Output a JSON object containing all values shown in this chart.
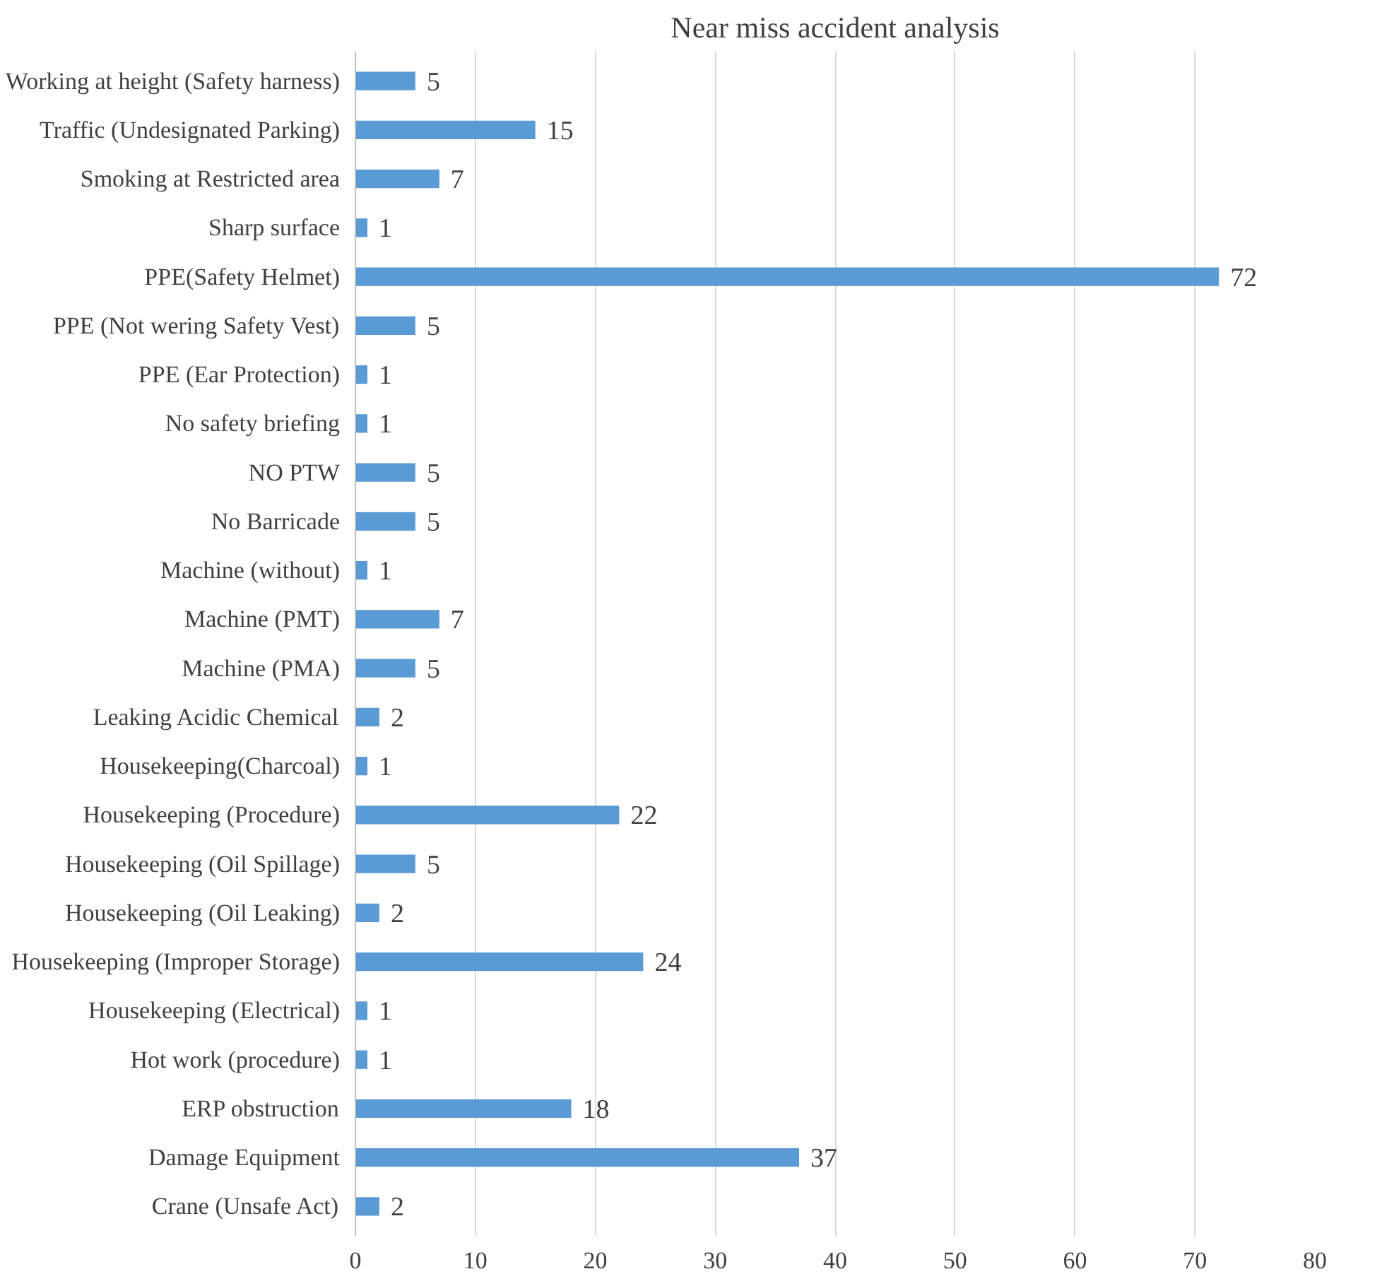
{
  "chart_data": {
    "type": "bar",
    "orientation": "horizontal",
    "title": "Near miss accident analysis",
    "categories": [
      "Working at height (Safety harness)",
      "Traffic (Undesignated Parking)",
      "Smoking at Restricted area",
      "Sharp surface",
      "PPE(Safety Helmet)",
      "PPE (Not wering Safety Vest)",
      "PPE (Ear Protection)",
      "No safety briefing",
      "NO PTW",
      "No Barricade",
      "Machine (without)",
      "Machine (PMT)",
      "Machine (PMA)",
      "Leaking Acidic Chemical",
      "Housekeeping(Charcoal)",
      "Housekeeping (Procedure)",
      "Housekeeping (Oil Spillage)",
      "Housekeeping (Oil Leaking)",
      "Housekeeping (Improper Storage)",
      "Housekeeping (Electrical)",
      "Hot work (procedure)",
      "ERP obstruction",
      "Damage Equipment",
      "Crane (Unsafe Act)"
    ],
    "values": [
      5,
      15,
      7,
      1,
      72,
      5,
      1,
      1,
      5,
      5,
      1,
      7,
      5,
      2,
      1,
      22,
      5,
      2,
      24,
      1,
      1,
      18,
      37,
      2
    ],
    "color": "#5b9bd5",
    "xlim": [
      0,
      80
    ],
    "xticks": [
      0,
      10,
      20,
      30,
      40,
      50,
      60,
      70,
      80
    ],
    "grid": "x",
    "data_labels": true
  }
}
